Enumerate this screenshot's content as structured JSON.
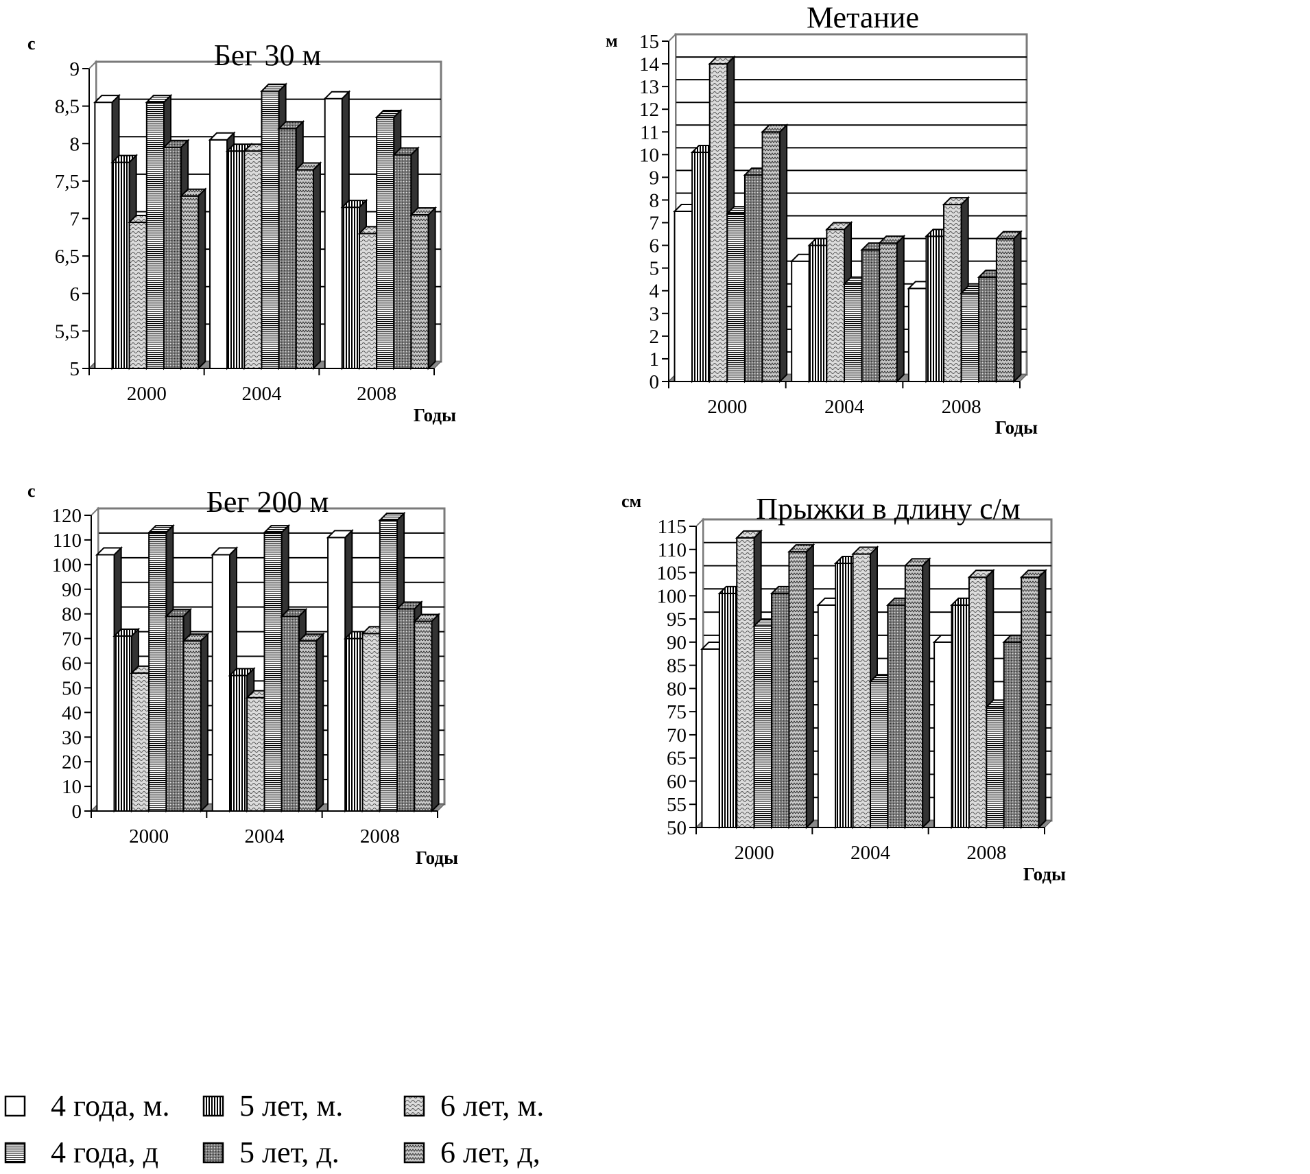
{
  "legend": [
    {
      "label": "4 года, м.",
      "pattern": "white"
    },
    {
      "label": "5 лет, м.",
      "pattern": "vlines"
    },
    {
      "label": "6 лет, м.",
      "pattern": "wave"
    },
    {
      "label": "4 года, д",
      "pattern": "hlines"
    },
    {
      "label": "5 лет, д.",
      "pattern": "dots"
    },
    {
      "label": "6 лет, д,",
      "pattern": "zigzag"
    }
  ],
  "chart_data": [
    {
      "type": "bar",
      "title": "Бег 30 м",
      "ylabel": "с",
      "xlabel": "Годы",
      "categories": [
        "2000",
        "2004",
        "2008"
      ],
      "ylim": [
        5,
        9
      ],
      "yticks": [
        "5",
        "5,5",
        "6",
        "6,5",
        "7",
        "7,5",
        "8",
        "8,5",
        "9"
      ],
      "grid": true,
      "series": [
        {
          "name": "4 года, м.",
          "values": [
            8.55,
            8.05,
            8.6
          ]
        },
        {
          "name": "5 лет, м.",
          "values": [
            7.75,
            7.9,
            7.15
          ]
        },
        {
          "name": "6 лет, м.",
          "values": [
            6.95,
            7.9,
            6.8
          ]
        },
        {
          "name": "4 года, д",
          "values": [
            8.55,
            8.7,
            8.35
          ]
        },
        {
          "name": "5 лет, д.",
          "values": [
            7.95,
            8.2,
            7.85
          ]
        },
        {
          "name": "6 лет, д,",
          "values": [
            7.3,
            7.65,
            7.05
          ]
        }
      ]
    },
    {
      "type": "bar",
      "title": "Метание",
      "ylabel": "м",
      "xlabel": "Годы",
      "categories": [
        "2000",
        "2004",
        "2008"
      ],
      "ylim": [
        0,
        15
      ],
      "yticks": [
        "0",
        "1",
        "2",
        "3",
        "4",
        "5",
        "6",
        "7",
        "8",
        "9",
        "10",
        "11",
        "12",
        "13",
        "14",
        "15"
      ],
      "grid": true,
      "series": [
        {
          "name": "4 года, м.",
          "values": [
            7.5,
            5.3,
            4.1
          ]
        },
        {
          "name": "5 лет, м.",
          "values": [
            10.1,
            6.0,
            6.4
          ]
        },
        {
          "name": "6 лет, м.",
          "values": [
            14.0,
            6.7,
            7.8
          ]
        },
        {
          "name": "4 года, д",
          "values": [
            7.4,
            4.3,
            3.9
          ]
        },
        {
          "name": "5 лет, д.",
          "values": [
            9.1,
            5.8,
            4.6
          ]
        },
        {
          "name": "6 лет, д,",
          "values": [
            11.0,
            6.1,
            6.3
          ]
        }
      ]
    },
    {
      "type": "bar",
      "title": "Бег 200 м",
      "ylabel": "с",
      "xlabel": "Годы",
      "categories": [
        "2000",
        "2004",
        "2008"
      ],
      "ylim": [
        0,
        120
      ],
      "yticks": [
        "0",
        "10",
        "20",
        "30",
        "40",
        "50",
        "60",
        "70",
        "80",
        "90",
        "100",
        "110",
        "120"
      ],
      "grid": true,
      "series": [
        {
          "name": "4 года, м.",
          "values": [
            104,
            104,
            111
          ]
        },
        {
          "name": "5 лет, м.",
          "values": [
            71,
            55,
            70
          ]
        },
        {
          "name": "6 лет, м.",
          "values": [
            56,
            46,
            72
          ]
        },
        {
          "name": "4 года, д",
          "values": [
            113,
            113,
            118
          ]
        },
        {
          "name": "5 лет, д.",
          "values": [
            79,
            79,
            82
          ]
        },
        {
          "name": "6 лет, д,",
          "values": [
            69,
            69,
            77
          ]
        }
      ]
    },
    {
      "type": "bar",
      "title": "Прыжки в длину с/м",
      "ylabel": "см",
      "xlabel": "Годы",
      "categories": [
        "2000",
        "2004",
        "2008"
      ],
      "ylim": [
        50,
        115
      ],
      "yticks": [
        "50",
        "55",
        "60",
        "65",
        "70",
        "75",
        "80",
        "85",
        "90",
        "95",
        "100",
        "105",
        "110",
        "115"
      ],
      "grid": true,
      "series": [
        {
          "name": "4 года, м.",
          "values": [
            88.5,
            98,
            90
          ]
        },
        {
          "name": "5 лет, м.",
          "values": [
            100.5,
            107,
            98
          ]
        },
        {
          "name": "6 лет, м.",
          "values": [
            112.5,
            109,
            104
          ]
        },
        {
          "name": "4 года, д",
          "values": [
            93.5,
            81.5,
            76
          ]
        },
        {
          "name": "5 лет, д.",
          "values": [
            100.5,
            98,
            90
          ]
        },
        {
          "name": "6 лет, д,",
          "values": [
            109.5,
            106.5,
            104
          ]
        }
      ]
    }
  ]
}
